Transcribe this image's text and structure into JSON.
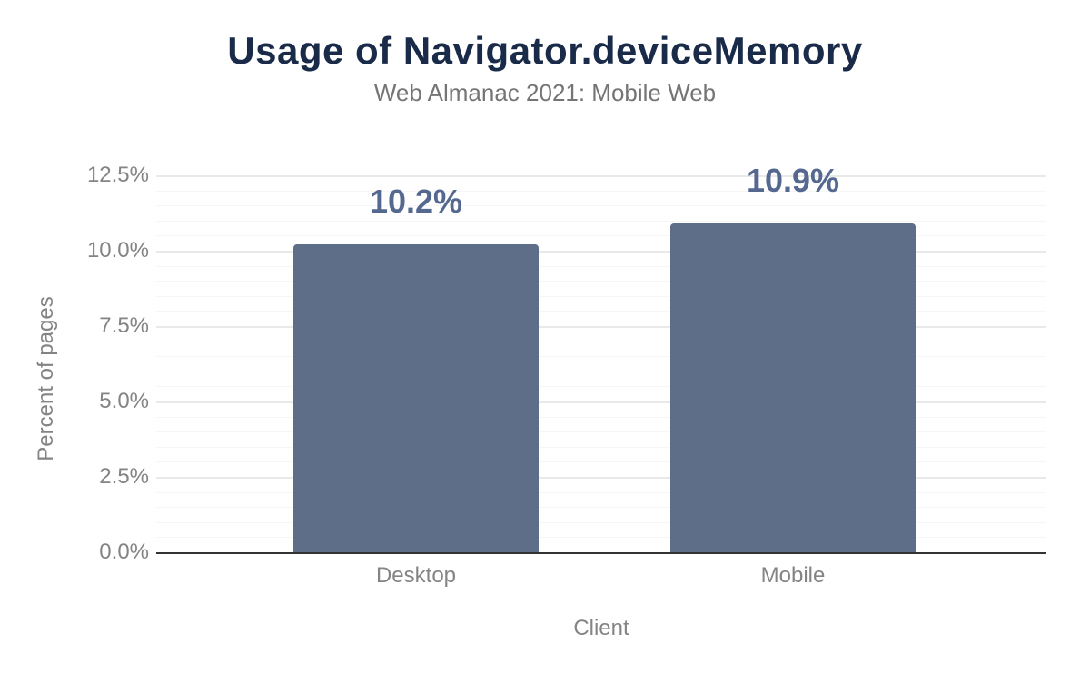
{
  "title": "Usage of Navigator.deviceMemory",
  "subtitle": "Web Almanac 2021: Mobile Web",
  "colors": {
    "title_text": "#1a2b49",
    "subtitle_text": "#757575",
    "axis_text": "#848484",
    "bar_fill": "#5e6e89",
    "value_label_text": "#55688f",
    "axis_line": "#333333",
    "grid_major": "#e9e9e9",
    "grid_minor": "#f6f6f6",
    "background": "#ffffff"
  },
  "chart_data": {
    "type": "bar",
    "title": "Usage of Navigator.deviceMemory",
    "subtitle": "Web Almanac 2021: Mobile Web",
    "categories": [
      "Desktop",
      "Mobile"
    ],
    "values": [
      10.2,
      10.9
    ],
    "value_labels": [
      "10.2%",
      "10.9%"
    ],
    "xlabel": "Client",
    "ylabel": "Percent of pages",
    "ylim": [
      0,
      12.5
    ],
    "ytick_major_step": 2.5,
    "ytick_minor_step": 0.5,
    "ytick_labels": [
      "0.0%",
      "2.5%",
      "5.0%",
      "7.5%",
      "10.0%",
      "12.5%"
    ],
    "grid": "on",
    "legend": "none",
    "bar_orientation": "vertical"
  }
}
